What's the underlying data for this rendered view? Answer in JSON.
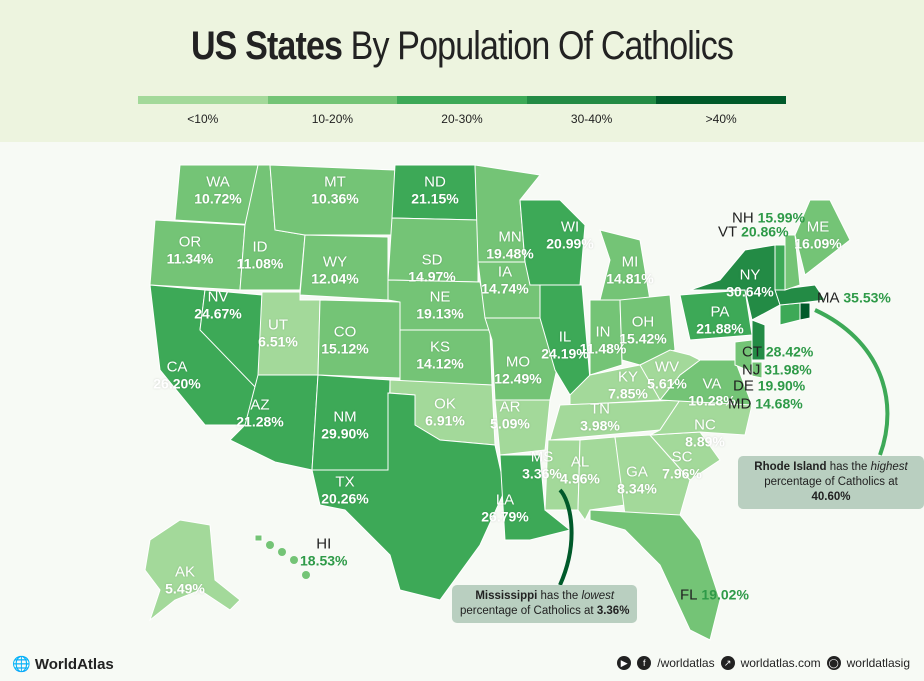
{
  "title": {
    "bold": "US States",
    "rest": "By Population Of Catholics"
  },
  "legend": [
    {
      "label": "<10%",
      "color": "#a3d99a"
    },
    {
      "label": "10-20%",
      "color": "#74c476"
    },
    {
      "label": "20-30%",
      "color": "#3da957"
    },
    {
      "label": "30-40%",
      "color": "#238b45"
    },
    {
      "label": ">40%",
      "color": "#005a2a"
    }
  ],
  "states": [
    {
      "abbr": "WA",
      "pct": "10.72%",
      "cls": 1
    },
    {
      "abbr": "OR",
      "pct": "11.34%",
      "cls": 1
    },
    {
      "abbr": "CA",
      "pct": "26.20%",
      "cls": 2
    },
    {
      "abbr": "NV",
      "pct": "24.67%",
      "cls": 2
    },
    {
      "abbr": "ID",
      "pct": "11.08%",
      "cls": 1
    },
    {
      "abbr": "MT",
      "pct": "10.36%",
      "cls": 1
    },
    {
      "abbr": "WY",
      "pct": "12.04%",
      "cls": 1
    },
    {
      "abbr": "UT",
      "pct": "6.51%",
      "cls": 0
    },
    {
      "abbr": "CO",
      "pct": "15.12%",
      "cls": 1
    },
    {
      "abbr": "AZ",
      "pct": "21.28%",
      "cls": 2
    },
    {
      "abbr": "NM",
      "pct": "29.90%",
      "cls": 2
    },
    {
      "abbr": "ND",
      "pct": "21.15%",
      "cls": 2
    },
    {
      "abbr": "SD",
      "pct": "14.97%",
      "cls": 1
    },
    {
      "abbr": "NE",
      "pct": "19.13%",
      "cls": 1
    },
    {
      "abbr": "KS",
      "pct": "14.12%",
      "cls": 1
    },
    {
      "abbr": "OK",
      "pct": "6.91%",
      "cls": 0
    },
    {
      "abbr": "TX",
      "pct": "20.26%",
      "cls": 2
    },
    {
      "abbr": "MN",
      "pct": "19.48%",
      "cls": 1
    },
    {
      "abbr": "IA",
      "pct": "14.74%",
      "cls": 1
    },
    {
      "abbr": "MO",
      "pct": "12.49%",
      "cls": 1
    },
    {
      "abbr": "AR",
      "pct": "5.09%",
      "cls": 0
    },
    {
      "abbr": "LA",
      "pct": "26.79%",
      "cls": 2
    },
    {
      "abbr": "WI",
      "pct": "20.99%",
      "cls": 2
    },
    {
      "abbr": "IL",
      "pct": "24.19%",
      "cls": 2
    },
    {
      "abbr": "MI",
      "pct": "14.81%",
      "cls": 1
    },
    {
      "abbr": "IN",
      "pct": "11.48%",
      "cls": 1
    },
    {
      "abbr": "OH",
      "pct": "15.42%",
      "cls": 1
    },
    {
      "abbr": "KY",
      "pct": "7.85%",
      "cls": 0
    },
    {
      "abbr": "TN",
      "pct": "3.98%",
      "cls": 0
    },
    {
      "abbr": "MS",
      "pct": "3.36%",
      "cls": 0
    },
    {
      "abbr": "AL",
      "pct": "4.96%",
      "cls": 0
    },
    {
      "abbr": "GA",
      "pct": "8.34%",
      "cls": 0
    },
    {
      "abbr": "FL",
      "pct": "19.02%",
      "cls": 1
    },
    {
      "abbr": "SC",
      "pct": "7.96%",
      "cls": 0
    },
    {
      "abbr": "NC",
      "pct": "8.89%",
      "cls": 0
    },
    {
      "abbr": "VA",
      "pct": "10.28%",
      "cls": 1
    },
    {
      "abbr": "WV",
      "pct": "5.61%",
      "cls": 0
    },
    {
      "abbr": "PA",
      "pct": "21.88%",
      "cls": 2
    },
    {
      "abbr": "NY",
      "pct": "30.64%",
      "cls": 3
    },
    {
      "abbr": "NJ",
      "pct": "31.98%",
      "cls": 3
    },
    {
      "abbr": "DE",
      "pct": "19.90%",
      "cls": 1
    },
    {
      "abbr": "MD",
      "pct": "14.68%",
      "cls": 1
    },
    {
      "abbr": "CT",
      "pct": "28.42%",
      "cls": 2
    },
    {
      "abbr": "RI",
      "pct": "40.60%",
      "cls": 4
    },
    {
      "abbr": "MA",
      "pct": "35.53%",
      "cls": 3
    },
    {
      "abbr": "VT",
      "pct": "20.86%",
      "cls": 2
    },
    {
      "abbr": "NH",
      "pct": "15.99%",
      "cls": 1
    },
    {
      "abbr": "ME",
      "pct": "16.09%",
      "cls": 1
    },
    {
      "abbr": "AK",
      "pct": "5.49%",
      "cls": 0
    },
    {
      "abbr": "HI",
      "pct": "18.53%",
      "cls": 1
    }
  ],
  "callouts": {
    "ri": {
      "state": "Rhode Island",
      "mid": "has the",
      "em": "highest",
      "line2": "percentage of Catholics at",
      "value": "40.60%"
    },
    "ms": {
      "state": "Mississippi",
      "mid": "has the",
      "em": "lowest",
      "line2": "percentage of Catholics at",
      "value": "3.36%"
    }
  },
  "footer": {
    "brand": "WorldAtlas",
    "social_handle": "/worldatlas",
    "website": "worldatlas.com",
    "instagram": "worldatlasig",
    "icons": [
      "globe-icon",
      "youtube-icon",
      "facebook-icon",
      "website-icon",
      "instagram-icon"
    ]
  }
}
